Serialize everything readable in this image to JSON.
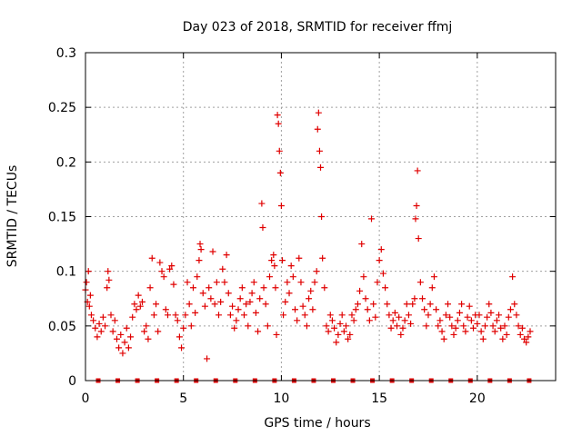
{
  "chart_data": {
    "type": "scatter",
    "title": "Day 023 of 2018, SRMTID for receiver ffmj",
    "xlabel": "GPS time / hours",
    "ylabel": "SRMTID / TECUs",
    "xlim": [
      0,
      24
    ],
    "ylim": [
      0,
      0.3
    ],
    "x_ticks": [
      0,
      5,
      10,
      15,
      20
    ],
    "y_ticks": [
      0,
      0.05,
      0.1,
      0.15,
      0.2,
      0.25,
      0.3
    ],
    "x_tick_labels": [
      "0",
      "5",
      "10",
      "15",
      "20"
    ],
    "y_tick_labels": [
      "0",
      "0.05",
      "0.1",
      "0.15",
      "0.2",
      "0.25",
      "0.3"
    ],
    "grid": true,
    "marker": "+",
    "series": [
      {
        "name": "SRMTID",
        "color": "#e00000",
        "points": [
          [
            0.0,
            0.083
          ],
          [
            0.05,
            0.09
          ],
          [
            0.1,
            0.072
          ],
          [
            0.15,
            0.1
          ],
          [
            0.2,
            0.068
          ],
          [
            0.25,
            0.078
          ],
          [
            0.3,
            0.06
          ],
          [
            0.4,
            0.055
          ],
          [
            0.5,
            0.048
          ],
          [
            0.6,
            0.04
          ],
          [
            0.7,
            0.052
          ],
          [
            0.8,
            0.045
          ],
          [
            0.9,
            0.058
          ],
          [
            1.0,
            0.05
          ],
          [
            1.1,
            0.085
          ],
          [
            1.15,
            0.1
          ],
          [
            1.2,
            0.092
          ],
          [
            1.3,
            0.06
          ],
          [
            1.4,
            0.045
          ],
          [
            1.5,
            0.055
          ],
          [
            1.6,
            0.038
          ],
          [
            1.7,
            0.03
          ],
          [
            1.8,
            0.042
          ],
          [
            1.9,
            0.025
          ],
          [
            2.0,
            0.035
          ],
          [
            2.1,
            0.048
          ],
          [
            2.2,
            0.03
          ],
          [
            2.3,
            0.04
          ],
          [
            2.4,
            0.058
          ],
          [
            2.5,
            0.07
          ],
          [
            2.6,
            0.065
          ],
          [
            2.7,
            0.078
          ],
          [
            2.8,
            0.068
          ],
          [
            2.9,
            0.072
          ],
          [
            3.0,
            0.045
          ],
          [
            3.1,
            0.05
          ],
          [
            3.2,
            0.038
          ],
          [
            3.3,
            0.085
          ],
          [
            3.4,
            0.112
          ],
          [
            3.5,
            0.06
          ],
          [
            3.6,
            0.07
          ],
          [
            3.7,
            0.045
          ],
          [
            3.8,
            0.108
          ],
          [
            3.9,
            0.1
          ],
          [
            4.0,
            0.095
          ],
          [
            4.1,
            0.065
          ],
          [
            4.2,
            0.06
          ],
          [
            4.3,
            0.102
          ],
          [
            4.4,
            0.105
          ],
          [
            4.5,
            0.088
          ],
          [
            4.6,
            0.06
          ],
          [
            4.7,
            0.055
          ],
          [
            4.8,
            0.04
          ],
          [
            4.9,
            0.03
          ],
          [
            5.0,
            0.048
          ],
          [
            5.1,
            0.06
          ],
          [
            5.2,
            0.09
          ],
          [
            5.3,
            0.07
          ],
          [
            5.4,
            0.05
          ],
          [
            5.5,
            0.085
          ],
          [
            5.6,
            0.062
          ],
          [
            5.7,
            0.095
          ],
          [
            5.8,
            0.11
          ],
          [
            5.85,
            0.125
          ],
          [
            5.9,
            0.12
          ],
          [
            6.0,
            0.08
          ],
          [
            6.1,
            0.068
          ],
          [
            6.2,
            0.02
          ],
          [
            6.3,
            0.085
          ],
          [
            6.4,
            0.075
          ],
          [
            6.5,
            0.118
          ],
          [
            6.6,
            0.07
          ],
          [
            6.7,
            0.09
          ],
          [
            6.8,
            0.06
          ],
          [
            6.9,
            0.072
          ],
          [
            7.0,
            0.102
          ],
          [
            7.1,
            0.09
          ],
          [
            7.2,
            0.115
          ],
          [
            7.3,
            0.08
          ],
          [
            7.4,
            0.06
          ],
          [
            7.5,
            0.068
          ],
          [
            7.6,
            0.048
          ],
          [
            7.7,
            0.055
          ],
          [
            7.8,
            0.065
          ],
          [
            7.9,
            0.075
          ],
          [
            8.0,
            0.085
          ],
          [
            8.1,
            0.06
          ],
          [
            8.2,
            0.07
          ],
          [
            8.3,
            0.05
          ],
          [
            8.4,
            0.072
          ],
          [
            8.5,
            0.08
          ],
          [
            8.6,
            0.09
          ],
          [
            8.7,
            0.062
          ],
          [
            8.8,
            0.045
          ],
          [
            8.9,
            0.075
          ],
          [
            9.0,
            0.162
          ],
          [
            9.05,
            0.14
          ],
          [
            9.1,
            0.085
          ],
          [
            9.2,
            0.07
          ],
          [
            9.3,
            0.05
          ],
          [
            9.4,
            0.095
          ],
          [
            9.5,
            0.11
          ],
          [
            9.6,
            0.115
          ],
          [
            9.65,
            0.105
          ],
          [
            9.7,
            0.085
          ],
          [
            9.75,
            0.042
          ],
          [
            9.8,
            0.243
          ],
          [
            9.85,
            0.235
          ],
          [
            9.9,
            0.21
          ],
          [
            9.95,
            0.19
          ],
          [
            10.0,
            0.16
          ],
          [
            10.05,
            0.11
          ],
          [
            10.1,
            0.06
          ],
          [
            10.2,
            0.072
          ],
          [
            10.3,
            0.09
          ],
          [
            10.4,
            0.08
          ],
          [
            10.5,
            0.105
          ],
          [
            10.6,
            0.095
          ],
          [
            10.7,
            0.065
          ],
          [
            10.8,
            0.055
          ],
          [
            10.9,
            0.112
          ],
          [
            11.0,
            0.09
          ],
          [
            11.1,
            0.068
          ],
          [
            11.2,
            0.06
          ],
          [
            11.3,
            0.05
          ],
          [
            11.4,
            0.075
          ],
          [
            11.5,
            0.082
          ],
          [
            11.6,
            0.065
          ],
          [
            11.7,
            0.09
          ],
          [
            11.8,
            0.1
          ],
          [
            11.85,
            0.23
          ],
          [
            11.9,
            0.245
          ],
          [
            11.95,
            0.21
          ],
          [
            12.0,
            0.195
          ],
          [
            12.05,
            0.15
          ],
          [
            12.1,
            0.112
          ],
          [
            12.2,
            0.085
          ],
          [
            12.3,
            0.05
          ],
          [
            12.4,
            0.045
          ],
          [
            12.5,
            0.06
          ],
          [
            12.6,
            0.055
          ],
          [
            12.7,
            0.048
          ],
          [
            12.8,
            0.035
          ],
          [
            12.9,
            0.042
          ],
          [
            13.0,
            0.052
          ],
          [
            13.1,
            0.06
          ],
          [
            13.2,
            0.045
          ],
          [
            13.3,
            0.05
          ],
          [
            13.4,
            0.038
          ],
          [
            13.5,
            0.042
          ],
          [
            13.6,
            0.06
          ],
          [
            13.7,
            0.055
          ],
          [
            13.8,
            0.065
          ],
          [
            13.9,
            0.07
          ],
          [
            14.0,
            0.082
          ],
          [
            14.1,
            0.125
          ],
          [
            14.2,
            0.095
          ],
          [
            14.3,
            0.075
          ],
          [
            14.4,
            0.065
          ],
          [
            14.5,
            0.055
          ],
          [
            14.6,
            0.148
          ],
          [
            14.7,
            0.07
          ],
          [
            14.8,
            0.058
          ],
          [
            14.9,
            0.09
          ],
          [
            15.0,
            0.11
          ],
          [
            15.1,
            0.12
          ],
          [
            15.2,
            0.098
          ],
          [
            15.3,
            0.085
          ],
          [
            15.4,
            0.07
          ],
          [
            15.5,
            0.06
          ],
          [
            15.6,
            0.048
          ],
          [
            15.7,
            0.055
          ],
          [
            15.8,
            0.062
          ],
          [
            15.9,
            0.05
          ],
          [
            16.0,
            0.058
          ],
          [
            16.1,
            0.042
          ],
          [
            16.2,
            0.048
          ],
          [
            16.3,
            0.055
          ],
          [
            16.4,
            0.07
          ],
          [
            16.5,
            0.06
          ],
          [
            16.6,
            0.052
          ],
          [
            16.7,
            0.07
          ],
          [
            16.8,
            0.075
          ],
          [
            16.85,
            0.148
          ],
          [
            16.9,
            0.16
          ],
          [
            16.95,
            0.192
          ],
          [
            17.0,
            0.13
          ],
          [
            17.1,
            0.09
          ],
          [
            17.2,
            0.075
          ],
          [
            17.3,
            0.065
          ],
          [
            17.4,
            0.05
          ],
          [
            17.5,
            0.06
          ],
          [
            17.6,
            0.07
          ],
          [
            17.7,
            0.085
          ],
          [
            17.8,
            0.095
          ],
          [
            17.9,
            0.065
          ],
          [
            18.0,
            0.05
          ],
          [
            18.1,
            0.055
          ],
          [
            18.2,
            0.045
          ],
          [
            18.3,
            0.038
          ],
          [
            18.4,
            0.06
          ],
          [
            18.5,
            0.07
          ],
          [
            18.6,
            0.058
          ],
          [
            18.7,
            0.05
          ],
          [
            18.8,
            0.042
          ],
          [
            18.9,
            0.048
          ],
          [
            19.0,
            0.055
          ],
          [
            19.1,
            0.062
          ],
          [
            19.2,
            0.07
          ],
          [
            19.3,
            0.05
          ],
          [
            19.4,
            0.045
          ],
          [
            19.5,
            0.058
          ],
          [
            19.6,
            0.068
          ],
          [
            19.7,
            0.055
          ],
          [
            19.8,
            0.048
          ],
          [
            19.9,
            0.06
          ],
          [
            20.0,
            0.052
          ],
          [
            20.1,
            0.06
          ],
          [
            20.2,
            0.045
          ],
          [
            20.3,
            0.038
          ],
          [
            20.4,
            0.05
          ],
          [
            20.5,
            0.058
          ],
          [
            20.6,
            0.07
          ],
          [
            20.7,
            0.062
          ],
          [
            20.8,
            0.05
          ],
          [
            20.9,
            0.045
          ],
          [
            21.0,
            0.055
          ],
          [
            21.1,
            0.06
          ],
          [
            21.2,
            0.048
          ],
          [
            21.3,
            0.038
          ],
          [
            21.4,
            0.05
          ],
          [
            21.5,
            0.042
          ],
          [
            21.6,
            0.058
          ],
          [
            21.7,
            0.065
          ],
          [
            21.8,
            0.095
          ],
          [
            21.9,
            0.07
          ],
          [
            22.0,
            0.06
          ],
          [
            22.1,
            0.05
          ],
          [
            22.2,
            0.042
          ],
          [
            22.3,
            0.048
          ],
          [
            22.4,
            0.038
          ],
          [
            22.5,
            0.035
          ],
          [
            22.6,
            0.04
          ],
          [
            22.7,
            0.045
          ]
        ]
      }
    ],
    "baseline_markers": {
      "color": "#e00000",
      "y": 0,
      "x": [
        0.65,
        1.65,
        2.65,
        3.65,
        4.65,
        5.65,
        6.65,
        7.65,
        8.65,
        9.65,
        10.65,
        11.65,
        12.65,
        13.65,
        14.65,
        15.65,
        16.65,
        17.65,
        18.65,
        19.65,
        20.65,
        21.65,
        22.65
      ]
    }
  }
}
